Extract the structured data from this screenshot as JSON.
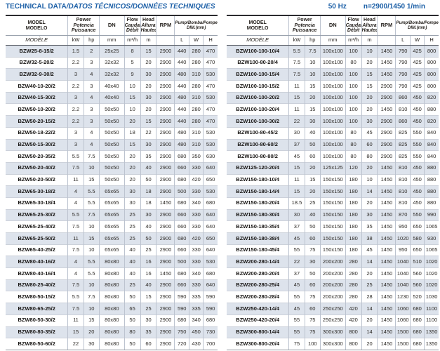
{
  "page": {
    "title_regular": "TECHNICAL DATA",
    "title_italic": "/DATOS TÉCNICOS/DONNÉES TECHNIQUES",
    "freq_label": "50 Hz",
    "speed_label": "n=2900/1450 1/min"
  },
  "colors": {
    "accent_blue": "#1d60a7",
    "row_stripe": "#dde3ec",
    "grid_line": "#bcc3cf",
    "heavy_rule": "#2a2a2e"
  },
  "table_header": {
    "model_line1": "MODEL",
    "model_line2": "MODELO",
    "model_line3": "MODÈLE",
    "power_line1": "Power",
    "power_line2": "Potencia",
    "power_line3": "Puissance",
    "power_unit_kw": "kW",
    "power_unit_hp": "hp",
    "dn_label": "DN",
    "dn_unit": "mm",
    "flow_line1": "Flow",
    "flow_line2": "Caudal",
    "flow_line3": "Débit",
    "flow_unit": "m³/h",
    "head_line1": "Head",
    "head_line2": "Altura",
    "head_line3": "Hauteur",
    "head_unit": "m",
    "rpm_label": "RPM",
    "dim_line1": "Pump/Bomba/Pompe",
    "dim_line2": "DIM.(mm)",
    "dim_l": "L",
    "dim_w": "W",
    "dim_h": "H"
  },
  "left_table": {
    "rows": [
      [
        "BZW25-8-15/2",
        "1.5",
        "2",
        "25x25",
        "8",
        "15",
        "2900",
        "440",
        "280",
        "470"
      ],
      [
        "BZW32-5-20/2",
        "2.2",
        "3",
        "32x32",
        "5",
        "20",
        "2900",
        "440",
        "280",
        "470"
      ],
      [
        "BZW32-9-30/2",
        "3",
        "4",
        "32x32",
        "9",
        "30",
        "2900",
        "480",
        "310",
        "530"
      ],
      [
        "BZW40-10-20/2",
        "2.2",
        "3",
        "40x40",
        "10",
        "20",
        "2900",
        "440",
        "280",
        "470"
      ],
      [
        "BZW40-15-30/2",
        "3",
        "4",
        "40x40",
        "15",
        "30",
        "2900",
        "480",
        "310",
        "530"
      ],
      [
        "BZW50-10-20/2",
        "2.2",
        "3",
        "50x50",
        "10",
        "20",
        "2900",
        "440",
        "280",
        "470"
      ],
      [
        "BZW50-20-15/2",
        "2.2",
        "3",
        "50x50",
        "20",
        "15",
        "2900",
        "440",
        "280",
        "470"
      ],
      [
        "BZW50-18-22/2",
        "3",
        "4",
        "50x50",
        "18",
        "22",
        "2900",
        "480",
        "310",
        "530"
      ],
      [
        "BZW50-15-30/2",
        "3",
        "4",
        "50x50",
        "15",
        "30",
        "2900",
        "480",
        "310",
        "530"
      ],
      [
        "BZW50-20-35/2",
        "5.5",
        "7.5",
        "50x50",
        "20",
        "35",
        "2900",
        "680",
        "350",
        "630"
      ],
      [
        "BZW50-20-40/2",
        "7.5",
        "10",
        "50x50",
        "20",
        "40",
        "2900",
        "660",
        "330",
        "640"
      ],
      [
        "BZW50-20-50/2",
        "11",
        "15",
        "50x50",
        "20",
        "50",
        "2900",
        "680",
        "420",
        "650"
      ],
      [
        "BZW65-30-18/2",
        "4",
        "5.5",
        "65x65",
        "30",
        "18",
        "2900",
        "500",
        "330",
        "530"
      ],
      [
        "BZW65-30-18/4",
        "4",
        "5.5",
        "65x65",
        "30",
        "18",
        "1450",
        "680",
        "340",
        "680"
      ],
      [
        "BZW65-25-30/2",
        "5.5",
        "7.5",
        "65x65",
        "25",
        "30",
        "2900",
        "660",
        "330",
        "640"
      ],
      [
        "BZW65-25-40/2",
        "7.5",
        "10",
        "65x65",
        "25",
        "40",
        "2900",
        "660",
        "330",
        "640"
      ],
      [
        "BZW65-25-50/2",
        "11",
        "15",
        "65x65",
        "25",
        "50",
        "2900",
        "680",
        "420",
        "650"
      ],
      [
        "BZW65-40-25/2",
        "7.5",
        "10",
        "65x65",
        "40",
        "25",
        "2900",
        "660",
        "330",
        "640"
      ],
      [
        "BZW80-40-16/2",
        "4",
        "5.5",
        "80x80",
        "40",
        "16",
        "2900",
        "500",
        "330",
        "530"
      ],
      [
        "BZW80-40-16/4",
        "4",
        "5.5",
        "80x80",
        "40",
        "16",
        "1450",
        "680",
        "340",
        "680"
      ],
      [
        "BZW80-25-40/2",
        "7.5",
        "10",
        "80x80",
        "25",
        "40",
        "2900",
        "660",
        "330",
        "640"
      ],
      [
        "BZW80-50-15/2",
        "5.5",
        "7.5",
        "80x80",
        "50",
        "15",
        "2900",
        "590",
        "335",
        "590"
      ],
      [
        "BZW80-65-25/2",
        "7.5",
        "10",
        "80x80",
        "65",
        "25",
        "2900",
        "590",
        "335",
        "590"
      ],
      [
        "BZW80-50-30/2",
        "11",
        "15",
        "80x80",
        "50",
        "30",
        "2900",
        "680",
        "340",
        "680"
      ],
      [
        "BZW80-80-35/2",
        "15",
        "20",
        "80x80",
        "80",
        "35",
        "2900",
        "750",
        "450",
        "730"
      ],
      [
        "BZW80-50-60/2",
        "22",
        "30",
        "80x80",
        "50",
        "60",
        "2900",
        "720",
        "430",
        "700"
      ]
    ]
  },
  "right_table": {
    "rows": [
      [
        "BZW100-100-10/4",
        "5.5",
        "7.5",
        "100x100",
        "100",
        "10",
        "1450",
        "790",
        "425",
        "800"
      ],
      [
        "BZW100-80-20/4",
        "7.5",
        "10",
        "100x100",
        "80",
        "20",
        "1450",
        "790",
        "425",
        "800"
      ],
      [
        "BZW100-100-15/4",
        "7.5",
        "10",
        "100x100",
        "100",
        "15",
        "1450",
        "790",
        "425",
        "800"
      ],
      [
        "BZW100-100-15/2",
        "11",
        "15",
        "100x100",
        "100",
        "15",
        "2900",
        "790",
        "425",
        "800"
      ],
      [
        "BZW100-100-20/2",
        "15",
        "20",
        "100x100",
        "100",
        "20",
        "2900",
        "860",
        "450",
        "820"
      ],
      [
        "BZW100-100-20/4",
        "11",
        "15",
        "100x100",
        "100",
        "20",
        "1450",
        "810",
        "450",
        "880"
      ],
      [
        "BZW100-100-30/2",
        "22",
        "30",
        "100x100",
        "100",
        "30",
        "2900",
        "860",
        "450",
        "820"
      ],
      [
        "BZW100-80-45/2",
        "30",
        "40",
        "100x100",
        "80",
        "45",
        "2900",
        "825",
        "550",
        "840"
      ],
      [
        "BZW100-80-60/2",
        "37",
        "50",
        "100x100",
        "80",
        "60",
        "2900",
        "825",
        "550",
        "840"
      ],
      [
        "BZW100-80-80/2",
        "45",
        "60",
        "100x100",
        "80",
        "80",
        "2900",
        "825",
        "550",
        "840"
      ],
      [
        "BZW125-120-20/4",
        "15",
        "20",
        "125x125",
        "120",
        "20",
        "1450",
        "810",
        "450",
        "880"
      ],
      [
        "BZW150-180-10/4",
        "11",
        "15",
        "150x150",
        "180",
        "10",
        "1450",
        "810",
        "450",
        "880"
      ],
      [
        "BZW150-180-14/4",
        "15",
        "20",
        "150x150",
        "180",
        "14",
        "1450",
        "810",
        "450",
        "880"
      ],
      [
        "BZW150-180-20/4",
        "18.5",
        "25",
        "150x150",
        "180",
        "20",
        "1450",
        "810",
        "450",
        "880"
      ],
      [
        "BZW150-180-30/4",
        "30",
        "40",
        "150x150",
        "180",
        "30",
        "1450",
        "870",
        "550",
        "990"
      ],
      [
        "BZW150-180-35/4",
        "37",
        "50",
        "150x150",
        "180",
        "35",
        "1450",
        "950",
        "650",
        "1065"
      ],
      [
        "BZW150-180-38/4",
        "45",
        "60",
        "150x150",
        "180",
        "38",
        "1450",
        "1020",
        "580",
        "930"
      ],
      [
        "BZW150-180-45/4",
        "55",
        "75",
        "150x150",
        "180",
        "45",
        "1450",
        "950",
        "650",
        "1065"
      ],
      [
        "BZW200-280-14/4",
        "22",
        "30",
        "200x200",
        "280",
        "14",
        "1450",
        "1040",
        "510",
        "1020"
      ],
      [
        "BZW200-280-20/4",
        "37",
        "50",
        "200x200",
        "280",
        "20",
        "1450",
        "1040",
        "560",
        "1020"
      ],
      [
        "BZW200-280-25/4",
        "45",
        "60",
        "200x200",
        "280",
        "25",
        "1450",
        "1040",
        "560",
        "1020"
      ],
      [
        "BZW200-280-28/4",
        "55",
        "75",
        "200x200",
        "280",
        "28",
        "1450",
        "1230",
        "520",
        "1030"
      ],
      [
        "BZW250-420-14/4",
        "45",
        "60",
        "250x250",
        "420",
        "14",
        "1450",
        "1060",
        "680",
        "1100"
      ],
      [
        "BZW250-420-20/4",
        "55",
        "75",
        "250x250",
        "420",
        "20",
        "1450",
        "1060",
        "680",
        "1100"
      ],
      [
        "BZW300-800-14/4",
        "55",
        "75",
        "300x300",
        "800",
        "14",
        "1450",
        "1500",
        "680",
        "1350"
      ],
      [
        "BZW300-800-20/4",
        "75",
        "100",
        "300x300",
        "800",
        "20",
        "1450",
        "1500",
        "680",
        "1350"
      ]
    ]
  }
}
